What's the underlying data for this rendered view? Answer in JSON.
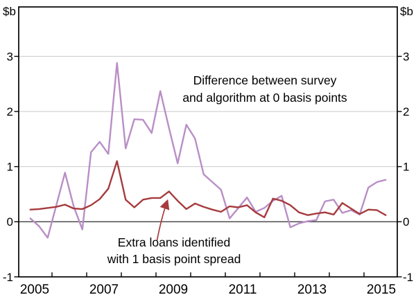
{
  "chart_data": {
    "type": "line",
    "title": "",
    "unit_label": "$b",
    "xlabel": "",
    "ylabel": "$b",
    "ylim": [
      -1,
      3.9
    ],
    "yticks": [
      -1,
      0,
      1,
      2,
      3
    ],
    "ygridlines": [
      1,
      2,
      3
    ],
    "zero_line": 0,
    "xtick_year_boundaries": [
      2006,
      2007,
      2008,
      2009,
      2010,
      2011,
      2012,
      2013,
      2014,
      2015
    ],
    "xtick_labels": [
      "2005",
      "2007",
      "2009",
      "2011",
      "2013",
      "2015"
    ],
    "xtick_label_year_centers": [
      2005.5,
      2007.5,
      2009.5,
      2011.5,
      2013.5,
      2015.5
    ],
    "grid": true,
    "legend_position": "in-chart annotations",
    "quarters": [
      "2005Q2",
      "2005Q3",
      "2005Q4",
      "2006Q1",
      "2006Q2",
      "2006Q3",
      "2006Q4",
      "2007Q1",
      "2007Q2",
      "2007Q3",
      "2007Q4",
      "2008Q1",
      "2008Q2",
      "2008Q3",
      "2008Q4",
      "2009Q1",
      "2009Q2",
      "2009Q3",
      "2009Q4",
      "2010Q1",
      "2010Q2",
      "2010Q3",
      "2010Q4",
      "2011Q1",
      "2011Q2",
      "2011Q3",
      "2011Q4",
      "2012Q1",
      "2012Q2",
      "2012Q3",
      "2012Q4",
      "2013Q1",
      "2013Q2",
      "2013Q3",
      "2013Q4",
      "2014Q1",
      "2014Q2",
      "2014Q3",
      "2014Q4",
      "2015Q1",
      "2015Q2",
      "2015Q3"
    ],
    "series": [
      {
        "name": "Difference between survey and algorithm at 0 basis points",
        "color": "#b98ec6",
        "values": [
          0.06,
          -0.08,
          -0.29,
          0.3,
          0.89,
          0.28,
          -0.14,
          1.26,
          1.45,
          1.23,
          2.88,
          1.33,
          1.86,
          1.85,
          1.61,
          2.37,
          1.7,
          1.06,
          1.76,
          1.51,
          0.86,
          0.72,
          0.58,
          0.06,
          0.25,
          0.44,
          0.18,
          0.25,
          0.38,
          0.47,
          -0.1,
          -0.03,
          0.01,
          0.03,
          0.37,
          0.4,
          0.16,
          0.21,
          0.13,
          0.62,
          0.72,
          0.76
        ]
      },
      {
        "name": "Extra loans identified with 1 basis point spread",
        "color": "#a63b3d",
        "values": [
          0.22,
          0.23,
          0.25,
          0.27,
          0.31,
          0.24,
          0.23,
          0.3,
          0.41,
          0.6,
          1.1,
          0.4,
          0.26,
          0.4,
          0.43,
          0.43,
          0.55,
          0.38,
          0.23,
          0.33,
          0.27,
          0.22,
          0.18,
          0.28,
          0.26,
          0.3,
          0.17,
          0.08,
          0.42,
          0.38,
          0.3,
          0.17,
          0.12,
          0.15,
          0.17,
          0.13,
          0.34,
          0.24,
          0.14,
          0.22,
          0.21,
          0.12
        ]
      }
    ],
    "annotations": [
      {
        "target_series": "Difference between survey and algorithm at 0 basis points",
        "lines": [
          "Difference between survey",
          "and algorithm at 0 basis points"
        ]
      },
      {
        "target_series": "Extra loans identified with 1 basis point spread",
        "lines": [
          "Extra loans identified",
          "with 1 basis point spread"
        ],
        "arrow": true
      }
    ]
  }
}
